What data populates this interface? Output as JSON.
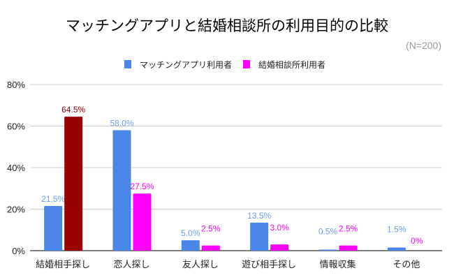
{
  "chart_data": {
    "type": "bar",
    "title": "マッチングアプリと結婚相談所の利用目的の比較",
    "subtitle": "(N=200)",
    "categories": [
      "結婚相手探し",
      "恋人探し",
      "友人探し",
      "遊び相手探し",
      "情報収集",
      "その他"
    ],
    "series": [
      {
        "name": "マッチングアプリ利用者",
        "values": [
          21.5,
          58.0,
          5.0,
          13.5,
          0.5,
          1.5
        ],
        "labels": [
          "21.5%",
          "58.0%",
          "5.0%",
          "13.5%",
          "0.5%",
          "1.5%"
        ],
        "color": "#4a86e8",
        "label_color": "#6d9eeb"
      },
      {
        "name": "結婚相談所利用者",
        "values": [
          64.5,
          27.5,
          2.5,
          3.0,
          2.5,
          0
        ],
        "labels": [
          "64.5%",
          "27.5%",
          "2.5%",
          "3.0%",
          "2.5%",
          "0%"
        ],
        "color": "#ff00ff",
        "label_color": "#ff00ff",
        "highlight": {
          "index": 0,
          "color": "#990000"
        }
      }
    ],
    "yticks": [
      "0%",
      "20%",
      "40%",
      "60%",
      "80%"
    ],
    "ylim": [
      0,
      80
    ],
    "grid": true,
    "legend": "top"
  }
}
